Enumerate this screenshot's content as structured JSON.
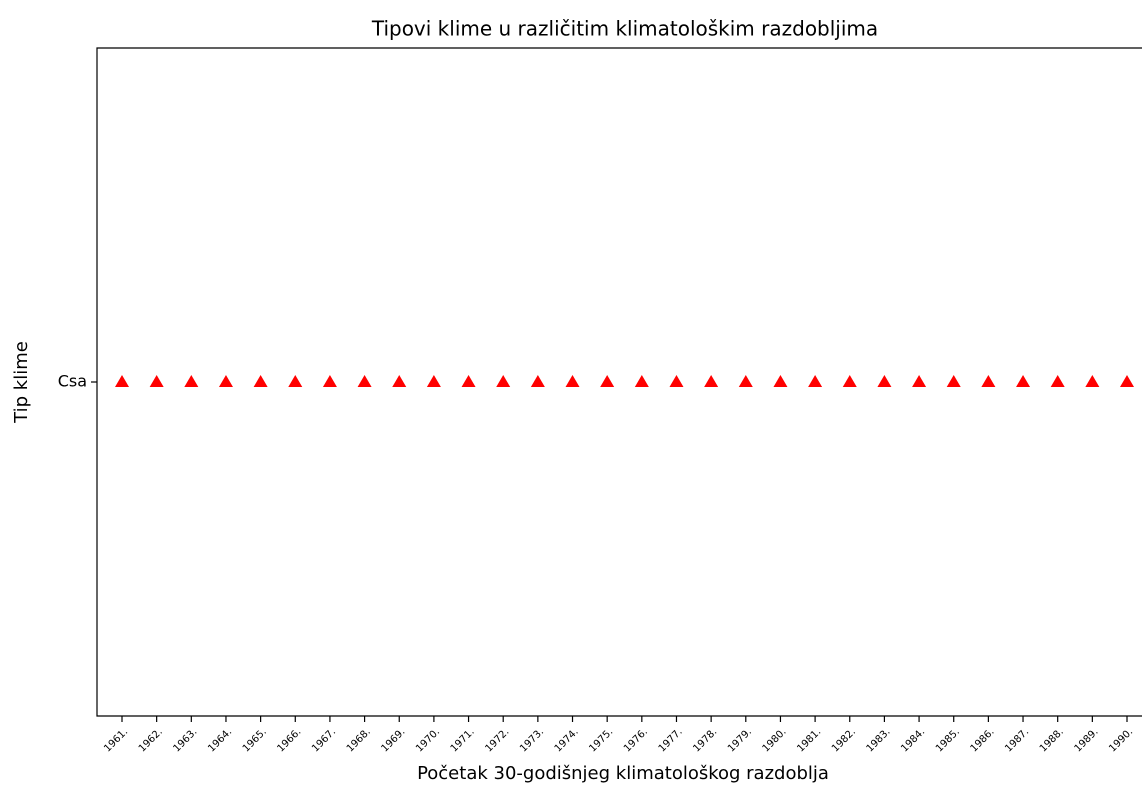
{
  "chart_data": {
    "type": "scatter",
    "title": "Tipovi klime u različitim klimatološkim razdobljima",
    "x_label": "Početak 30-godišnjeg klimatološkog razdoblja",
    "y_label": "Tip klime",
    "categories": [
      "1961.",
      "1962.",
      "1963.",
      "1964.",
      "1965.",
      "1966.",
      "1967.",
      "1968.",
      "1969.",
      "1970.",
      "1971.",
      "1972.",
      "1973.",
      "1974.",
      "1975.",
      "1976.",
      "1977.",
      "1978.",
      "1979.",
      "1980.",
      "1981.",
      "1982.",
      "1983.",
      "1984.",
      "1985.",
      "1986.",
      "1987.",
      "1988.",
      "1989.",
      "1990."
    ],
    "y_categories": [
      "Csa"
    ],
    "values": [
      "Csa",
      "Csa",
      "Csa",
      "Csa",
      "Csa",
      "Csa",
      "Csa",
      "Csa",
      "Csa",
      "Csa",
      "Csa",
      "Csa",
      "Csa",
      "Csa",
      "Csa",
      "Csa",
      "Csa",
      "Csa",
      "Csa",
      "Csa",
      "Csa",
      "Csa",
      "Csa",
      "Csa",
      "Csa",
      "Csa",
      "Csa",
      "Csa",
      "Csa",
      "Csa"
    ],
    "color": "#ff0000",
    "marker": "triangle"
  }
}
